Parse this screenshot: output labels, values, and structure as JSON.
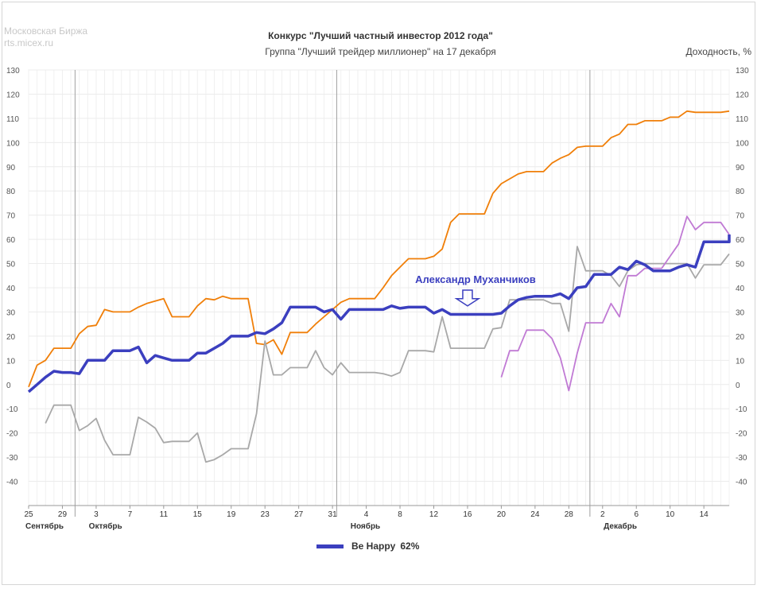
{
  "source": {
    "line1": "Московская Биржа",
    "line2": "rts.micex.ru"
  },
  "chart_data": {
    "type": "line",
    "title": "Конкурс \"Лучший частный инвестор 2012 года\"",
    "subtitle": "Группа \"Лучший трейдер миллионер\" на 17 декабря",
    "ylabel": "Доходность, %",
    "ylim": [
      -50,
      130
    ],
    "yticks": [
      130,
      120,
      110,
      100,
      90,
      80,
      70,
      60,
      50,
      40,
      30,
      20,
      10,
      0,
      -10,
      -20,
      -30,
      -40
    ],
    "x_start_date": "2012-09-25",
    "x_end_date": "2012-12-17",
    "x_ticks": [
      {
        "date": "2012-09-25",
        "label": "25"
      },
      {
        "date": "2012-09-29",
        "label": "29"
      },
      {
        "date": "2012-10-03",
        "label": "3"
      },
      {
        "date": "2012-10-07",
        "label": "7"
      },
      {
        "date": "2012-10-11",
        "label": "11"
      },
      {
        "date": "2012-10-15",
        "label": "15"
      },
      {
        "date": "2012-10-19",
        "label": "19"
      },
      {
        "date": "2012-10-23",
        "label": "23"
      },
      {
        "date": "2012-10-27",
        "label": "27"
      },
      {
        "date": "2012-10-31",
        "label": "31"
      },
      {
        "date": "2012-11-04",
        "label": "4"
      },
      {
        "date": "2012-11-08",
        "label": "8"
      },
      {
        "date": "2012-11-12",
        "label": "12"
      },
      {
        "date": "2012-11-16",
        "label": "16"
      },
      {
        "date": "2012-11-20",
        "label": "20"
      },
      {
        "date": "2012-11-24",
        "label": "24"
      },
      {
        "date": "2012-11-28",
        "label": "28"
      },
      {
        "date": "2012-12-02",
        "label": "2"
      },
      {
        "date": "2012-12-06",
        "label": "6"
      },
      {
        "date": "2012-12-10",
        "label": "10"
      },
      {
        "date": "2012-12-14",
        "label": "14"
      }
    ],
    "months": [
      {
        "date": "2012-09-25",
        "label": "Сентябрь"
      },
      {
        "date": "2012-10-01",
        "label": "Октябрь"
      },
      {
        "date": "2012-11-01",
        "label": "Ноябрь"
      },
      {
        "date": "2012-12-01",
        "label": "Декабрь"
      }
    ],
    "month_separators": [
      "2012-09-30",
      "2012-10-31",
      "2012-11-30"
    ],
    "grid": true,
    "legend_position": "bottom",
    "legend": {
      "label": "Be Happy",
      "value": "62%"
    },
    "annotation": {
      "text": "Александр Муханчиков",
      "date": "2012-11-16",
      "color": "#3b3fbf"
    },
    "series": [
      {
        "color": "#f07f09",
        "points": [
          [
            "2012-09-25",
            -1
          ],
          [
            "2012-09-26",
            8
          ],
          [
            "2012-09-27",
            10
          ],
          [
            "2012-09-28",
            15
          ],
          [
            "2012-09-30",
            15
          ],
          [
            "2012-10-01",
            21
          ],
          [
            "2012-10-02",
            24
          ],
          [
            "2012-10-03",
            24.5
          ],
          [
            "2012-10-04",
            31
          ],
          [
            "2012-10-05",
            30
          ],
          [
            "2012-10-07",
            30
          ],
          [
            "2012-10-08",
            32
          ],
          [
            "2012-10-09",
            33.5
          ],
          [
            "2012-10-10",
            34.5
          ],
          [
            "2012-10-11",
            35.5
          ],
          [
            "2012-10-12",
            28
          ],
          [
            "2012-10-14",
            28
          ],
          [
            "2012-10-15",
            32.5
          ],
          [
            "2012-10-16",
            35.5
          ],
          [
            "2012-10-17",
            35
          ],
          [
            "2012-10-18",
            36.5
          ],
          [
            "2012-10-19",
            35.5
          ],
          [
            "2012-10-21",
            35.5
          ],
          [
            "2012-10-22",
            17
          ],
          [
            "2012-10-23",
            16.5
          ],
          [
            "2012-10-24",
            18.5
          ],
          [
            "2012-10-25",
            12.5
          ],
          [
            "2012-10-26",
            21.5
          ],
          [
            "2012-10-28",
            21.5
          ],
          [
            "2012-10-29",
            25
          ],
          [
            "2012-10-30",
            28
          ],
          [
            "2012-10-31",
            31
          ],
          [
            "2012-11-01",
            34
          ],
          [
            "2012-11-02",
            35.5
          ],
          [
            "2012-11-05",
            35.5
          ],
          [
            "2012-11-06",
            40
          ],
          [
            "2012-11-07",
            45
          ],
          [
            "2012-11-08",
            48.5
          ],
          [
            "2012-11-09",
            52
          ],
          [
            "2012-11-11",
            52
          ],
          [
            "2012-11-12",
            53
          ],
          [
            "2012-11-13",
            56
          ],
          [
            "2012-11-14",
            67
          ],
          [
            "2012-11-15",
            70.5
          ],
          [
            "2012-11-18",
            70.5
          ],
          [
            "2012-11-19",
            79
          ],
          [
            "2012-11-20",
            83
          ],
          [
            "2012-11-21",
            85
          ],
          [
            "2012-11-22",
            87
          ],
          [
            "2012-11-23",
            88
          ],
          [
            "2012-11-25",
            88
          ],
          [
            "2012-11-26",
            91.5
          ],
          [
            "2012-11-27",
            93.5
          ],
          [
            "2012-11-28",
            95
          ],
          [
            "2012-11-29",
            98
          ],
          [
            "2012-11-30",
            98.5
          ],
          [
            "2012-12-02",
            98.5
          ],
          [
            "2012-12-03",
            102
          ],
          [
            "2012-12-04",
            103.5
          ],
          [
            "2012-12-05",
            107.5
          ],
          [
            "2012-12-06",
            107.5
          ],
          [
            "2012-12-07",
            109
          ],
          [
            "2012-12-09",
            109
          ],
          [
            "2012-12-10",
            110.5
          ],
          [
            "2012-12-11",
            110.5
          ],
          [
            "2012-12-12",
            113
          ],
          [
            "2012-12-13",
            112.5
          ],
          [
            "2012-12-16",
            112.5
          ],
          [
            "2012-12-17",
            113
          ]
        ]
      },
      {
        "color": "#a8a8a8",
        "points": [
          [
            "2012-09-27",
            -16
          ],
          [
            "2012-09-28",
            -8.5
          ],
          [
            "2012-09-30",
            -8.5
          ],
          [
            "2012-10-01",
            -19
          ],
          [
            "2012-10-02",
            -17
          ],
          [
            "2012-10-03",
            -14
          ],
          [
            "2012-10-04",
            -23
          ],
          [
            "2012-10-05",
            -29
          ],
          [
            "2012-10-07",
            -29
          ],
          [
            "2012-10-08",
            -13.5
          ],
          [
            "2012-10-09",
            -15.5
          ],
          [
            "2012-10-10",
            -18
          ],
          [
            "2012-10-11",
            -24
          ],
          [
            "2012-10-12",
            -23.5
          ],
          [
            "2012-10-14",
            -23.5
          ],
          [
            "2012-10-15",
            -20
          ],
          [
            "2012-10-16",
            -32
          ],
          [
            "2012-10-17",
            -31
          ],
          [
            "2012-10-18",
            -29
          ],
          [
            "2012-10-19",
            -26.5
          ],
          [
            "2012-10-21",
            -26.5
          ],
          [
            "2012-10-22",
            -12
          ],
          [
            "2012-10-23",
            18
          ],
          [
            "2012-10-24",
            4
          ],
          [
            "2012-10-25",
            4
          ],
          [
            "2012-10-26",
            7
          ],
          [
            "2012-10-28",
            7
          ],
          [
            "2012-10-29",
            14
          ],
          [
            "2012-10-30",
            7
          ],
          [
            "2012-10-31",
            4
          ],
          [
            "2012-11-01",
            9
          ],
          [
            "2012-11-02",
            5
          ],
          [
            "2012-11-05",
            5
          ],
          [
            "2012-11-06",
            4.5
          ],
          [
            "2012-11-07",
            3.5
          ],
          [
            "2012-11-08",
            5
          ],
          [
            "2012-11-09",
            14
          ],
          [
            "2012-11-11",
            14
          ],
          [
            "2012-11-12",
            13.5
          ],
          [
            "2012-11-13",
            28
          ],
          [
            "2012-11-14",
            15
          ],
          [
            "2012-11-18",
            15
          ],
          [
            "2012-11-19",
            23
          ],
          [
            "2012-11-20",
            23.5
          ],
          [
            "2012-11-21",
            35
          ],
          [
            "2012-11-23",
            35
          ],
          [
            "2012-11-25",
            35
          ],
          [
            "2012-11-26",
            33.5
          ],
          [
            "2012-11-27",
            33.5
          ],
          [
            "2012-11-28",
            22
          ],
          [
            "2012-11-29",
            57
          ],
          [
            "2012-11-30",
            47
          ],
          [
            "2012-12-02",
            47
          ],
          [
            "2012-12-03",
            45
          ],
          [
            "2012-12-04",
            40.5
          ],
          [
            "2012-12-05",
            47
          ],
          [
            "2012-12-06",
            49.5
          ],
          [
            "2012-12-07",
            50
          ],
          [
            "2012-12-11",
            50
          ],
          [
            "2012-12-12",
            50
          ],
          [
            "2012-12-13",
            44
          ],
          [
            "2012-12-14",
            49.5
          ],
          [
            "2012-12-16",
            49.5
          ],
          [
            "2012-12-17",
            54
          ]
        ]
      },
      {
        "color": "#c07ad4",
        "points": [
          [
            "2012-11-20",
            3
          ],
          [
            "2012-11-21",
            14
          ],
          [
            "2012-11-22",
            14
          ],
          [
            "2012-11-23",
            22.5
          ],
          [
            "2012-11-25",
            22.5
          ],
          [
            "2012-11-26",
            19
          ],
          [
            "2012-11-27",
            11
          ],
          [
            "2012-11-28",
            -2.5
          ],
          [
            "2012-11-29",
            13
          ],
          [
            "2012-11-30",
            25.5
          ],
          [
            "2012-12-02",
            25.5
          ],
          [
            "2012-12-03",
            33.5
          ],
          [
            "2012-12-04",
            28
          ],
          [
            "2012-12-05",
            45
          ],
          [
            "2012-12-06",
            45
          ],
          [
            "2012-12-07",
            48
          ],
          [
            "2012-12-09",
            48
          ],
          [
            "2012-12-10",
            53
          ],
          [
            "2012-12-11",
            58
          ],
          [
            "2012-12-12",
            69.5
          ],
          [
            "2012-12-13",
            64
          ],
          [
            "2012-12-14",
            67
          ],
          [
            "2012-12-16",
            67
          ],
          [
            "2012-12-17",
            62
          ]
        ]
      },
      {
        "name": "Be Happy",
        "color": "#3b3fbf",
        "emphasized": true,
        "points": [
          [
            "2012-09-25",
            -3
          ],
          [
            "2012-09-26",
            0
          ],
          [
            "2012-09-27",
            3
          ],
          [
            "2012-09-28",
            5.5
          ],
          [
            "2012-09-29",
            5
          ],
          [
            "2012-09-30",
            5
          ],
          [
            "2012-10-01",
            4.5
          ],
          [
            "2012-10-02",
            10
          ],
          [
            "2012-10-04",
            10
          ],
          [
            "2012-10-05",
            14
          ],
          [
            "2012-10-07",
            14
          ],
          [
            "2012-10-08",
            15.5
          ],
          [
            "2012-10-09",
            9
          ],
          [
            "2012-10-10",
            12
          ],
          [
            "2012-10-11",
            11
          ],
          [
            "2012-10-12",
            10
          ],
          [
            "2012-10-14",
            10
          ],
          [
            "2012-10-15",
            13
          ],
          [
            "2012-10-16",
            13
          ],
          [
            "2012-10-17",
            15
          ],
          [
            "2012-10-18",
            17
          ],
          [
            "2012-10-19",
            20
          ],
          [
            "2012-10-21",
            20
          ],
          [
            "2012-10-22",
            21.5
          ],
          [
            "2012-10-23",
            21
          ],
          [
            "2012-10-24",
            23
          ],
          [
            "2012-10-25",
            25.5
          ],
          [
            "2012-10-26",
            32
          ],
          [
            "2012-10-29",
            32
          ],
          [
            "2012-10-30",
            30
          ],
          [
            "2012-10-31",
            31
          ],
          [
            "2012-11-01",
            27
          ],
          [
            "2012-11-02",
            31
          ],
          [
            "2012-11-06",
            31
          ],
          [
            "2012-11-07",
            32.5
          ],
          [
            "2012-11-08",
            31.5
          ],
          [
            "2012-11-09",
            32
          ],
          [
            "2012-11-11",
            32
          ],
          [
            "2012-11-12",
            29.5
          ],
          [
            "2012-11-13",
            31
          ],
          [
            "2012-11-14",
            29
          ],
          [
            "2012-11-19",
            29
          ],
          [
            "2012-11-20",
            29.5
          ],
          [
            "2012-11-21",
            32.5
          ],
          [
            "2012-11-22",
            35
          ],
          [
            "2012-11-23",
            36
          ],
          [
            "2012-11-24",
            36.5
          ],
          [
            "2012-11-26",
            36.5
          ],
          [
            "2012-11-27",
            37.5
          ],
          [
            "2012-11-28",
            35.5
          ],
          [
            "2012-11-29",
            40
          ],
          [
            "2012-11-30",
            40.5
          ],
          [
            "2012-12-01",
            45.5
          ],
          [
            "2012-12-03",
            45.5
          ],
          [
            "2012-12-04",
            48.5
          ],
          [
            "2012-12-05",
            47.5
          ],
          [
            "2012-12-06",
            51
          ],
          [
            "2012-12-07",
            49.5
          ],
          [
            "2012-12-08",
            47
          ],
          [
            "2012-12-10",
            47
          ],
          [
            "2012-12-11",
            48.5
          ],
          [
            "2012-12-12",
            49.5
          ],
          [
            "2012-12-13",
            48.5
          ],
          [
            "2012-12-14",
            59
          ],
          [
            "2012-12-17",
            59
          ],
          [
            "2012-12-18",
            62
          ]
        ]
      }
    ]
  }
}
